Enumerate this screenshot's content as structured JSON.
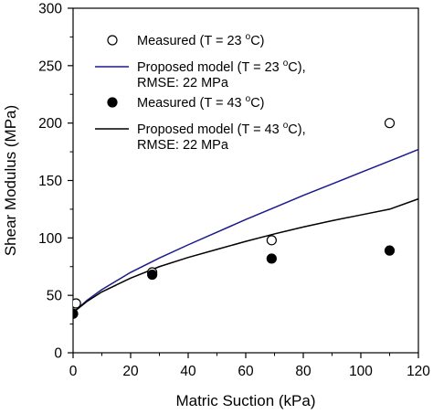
{
  "chart_data": {
    "type": "scatter",
    "xlabel": "Matric Suction (kPa)",
    "ylabel": "Shear Modulus (MPa)",
    "xlim": [
      0,
      120
    ],
    "ylim": [
      0,
      300
    ],
    "xticks": [
      "0",
      "20",
      "40",
      "60",
      "80",
      "100",
      "120"
    ],
    "yticks": [
      "0",
      "50",
      "100",
      "150",
      "200",
      "250",
      "300"
    ],
    "grid": false,
    "legend_position": "top-left",
    "series": [
      {
        "key": "meas23",
        "kind": "points",
        "marker": "open-circle",
        "color": "#000000",
        "points": [
          [
            1,
            43
          ],
          [
            27.5,
            70
          ],
          [
            69,
            98
          ],
          [
            110,
            200
          ]
        ]
      },
      {
        "key": "model23",
        "kind": "line",
        "color": "#1a1a8c",
        "x": [
          0,
          5,
          10,
          20,
          30,
          40,
          50,
          60,
          70,
          80,
          90,
          100,
          110,
          120
        ],
        "y": [
          35,
          46,
          55,
          70,
          82.5,
          94,
          105,
          116,
          126.5,
          137,
          147,
          157,
          167,
          177
        ]
      },
      {
        "key": "meas43",
        "kind": "points",
        "marker": "filled-circle",
        "color": "#000000",
        "points": [
          [
            0,
            34
          ],
          [
            27.5,
            68
          ],
          [
            69,
            82
          ],
          [
            110,
            89
          ]
        ]
      },
      {
        "key": "model43",
        "kind": "line",
        "color": "#000000",
        "x": [
          0,
          5,
          10,
          20,
          30,
          40,
          50,
          60,
          70,
          80,
          90,
          100,
          110,
          120
        ],
        "y": [
          35,
          45,
          53,
          65,
          75,
          83,
          90,
          97,
          103.5,
          109.5,
          115,
          120,
          125,
          134
        ]
      }
    ],
    "legend": [
      {
        "series": "meas23",
        "lines": [
          "Measured (T = 23 °C)"
        ]
      },
      {
        "series": "model23",
        "lines": [
          "Proposed model (T = 23 °C),",
          "RMSE: 22 MPa"
        ]
      },
      {
        "series": "meas43",
        "lines": [
          "Measured (T = 43 °C)"
        ]
      },
      {
        "series": "model43",
        "lines": [
          "Proposed model (T = 43 °C),",
          "RMSE: 22 MPa"
        ]
      }
    ]
  }
}
